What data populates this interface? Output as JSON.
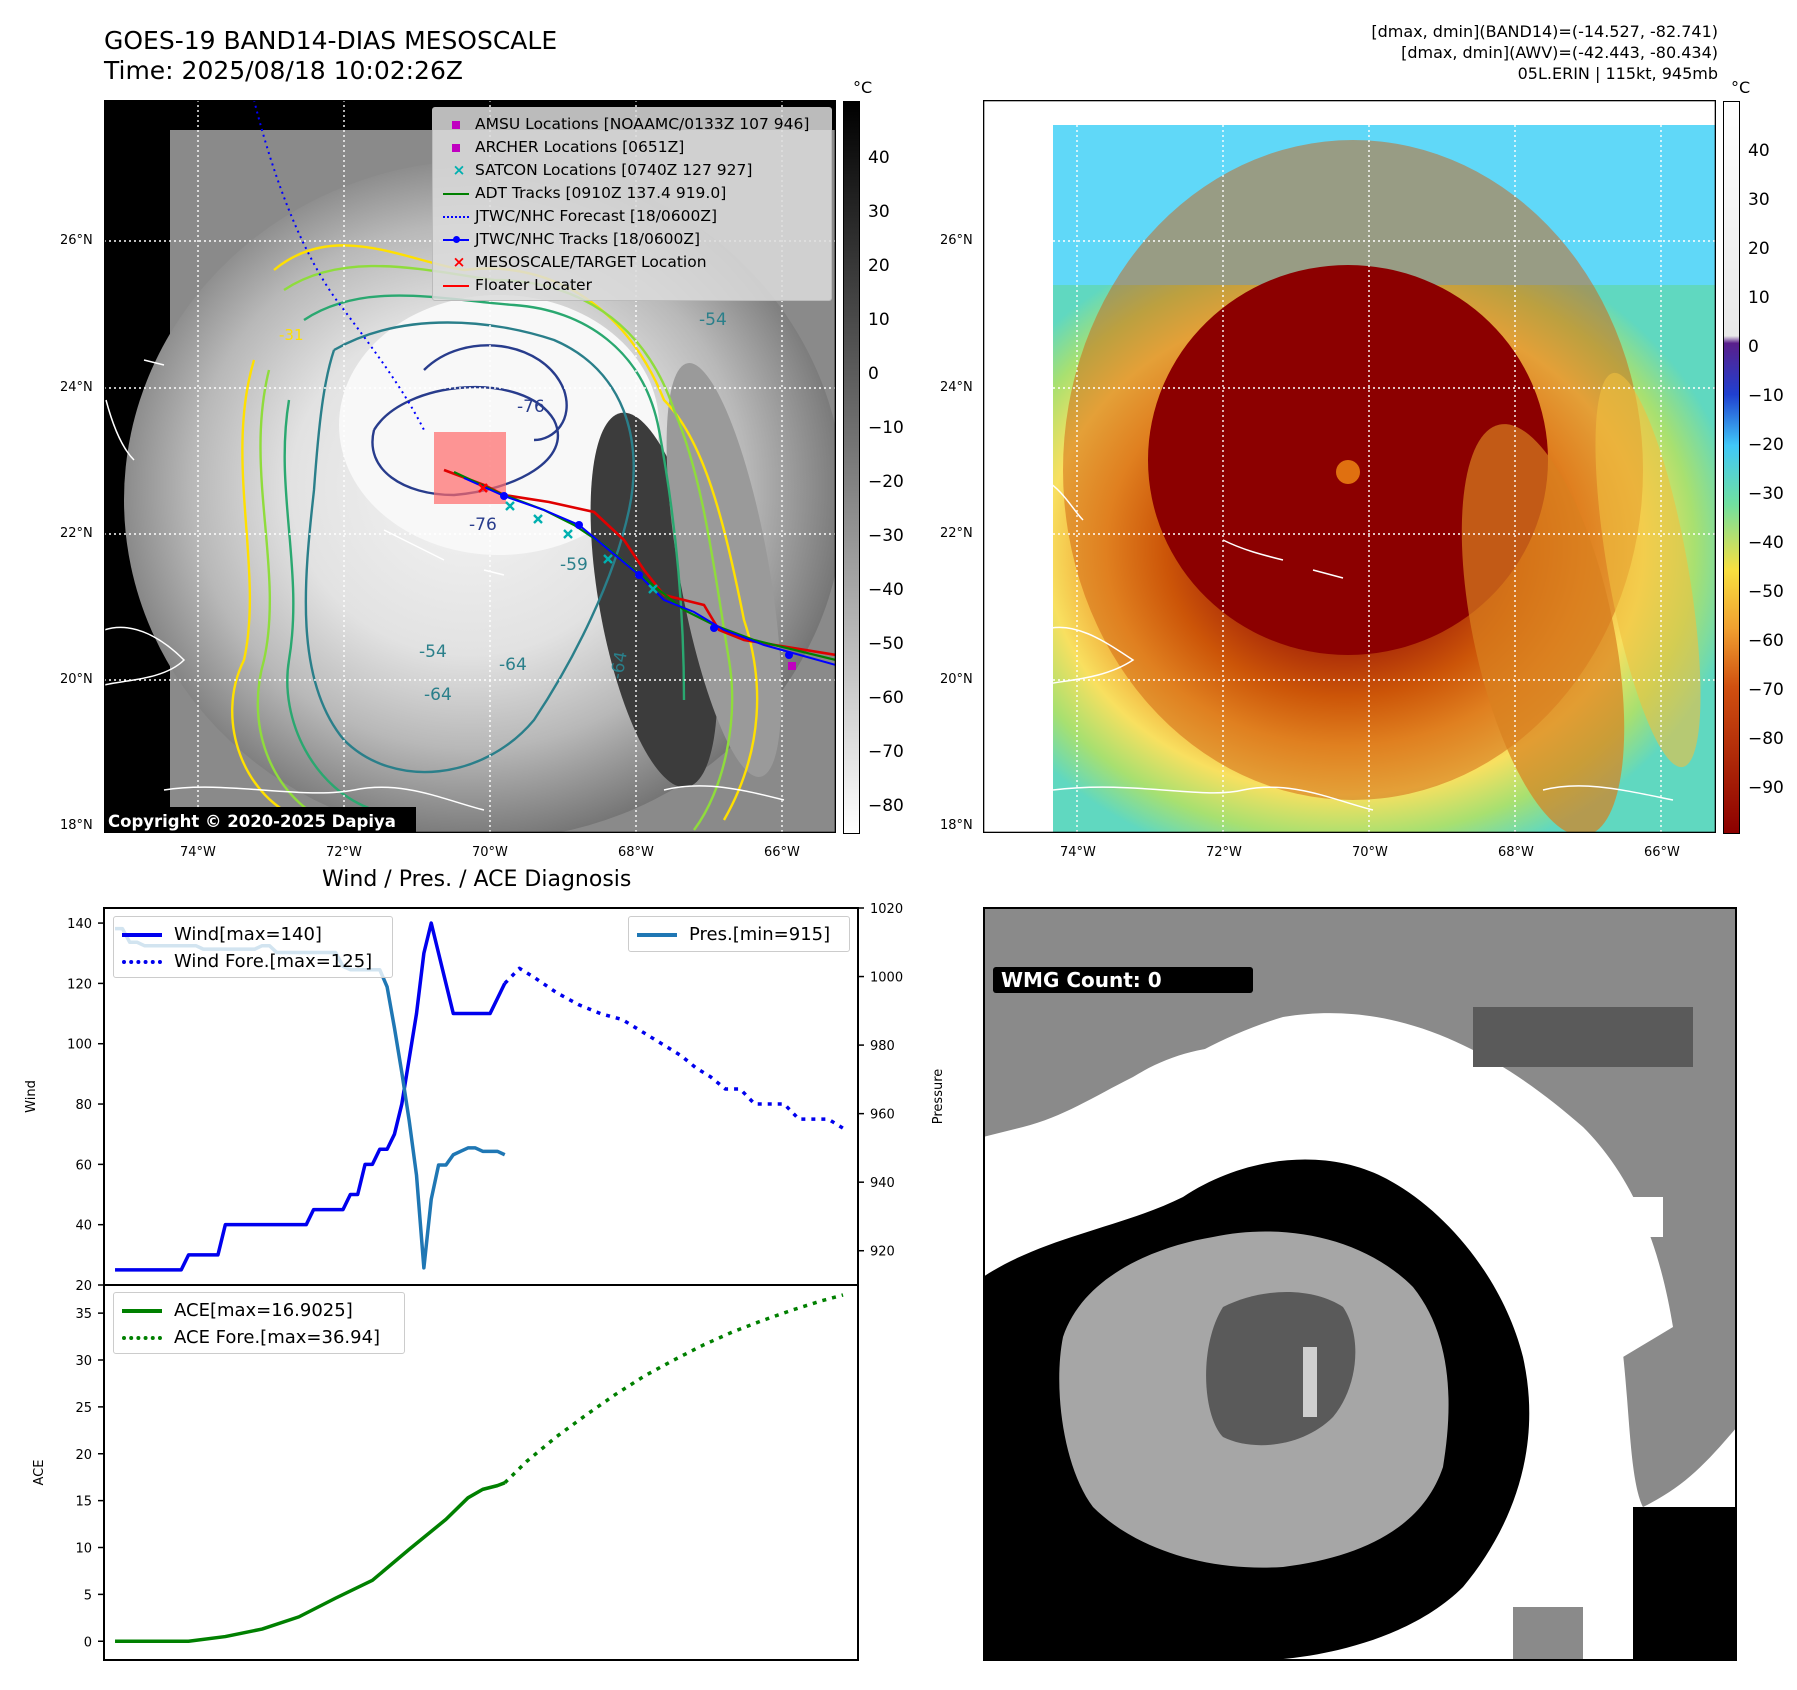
{
  "header": {
    "title_line1": "GOES-19 BAND14-DIAS MESOSCALE",
    "title_line2": "Time: 2025/08/18 10:02:26Z",
    "right_line1": "[dmax, dmin](BAND14)=(-14.527, -82.741)",
    "right_line2": "[dmax, dmin](AWV)=(-42.443, -80.434)",
    "right_line3": "05L.ERIN | 115kt, 945mb"
  },
  "map_axes": {
    "lon_labels": [
      "74°W",
      "72°W",
      "70°W",
      "68°W",
      "66°W"
    ],
    "lat_labels": [
      "26°N",
      "24°N",
      "22°N",
      "20°N",
      "18°N"
    ]
  },
  "colorbar_left": {
    "unit": "°C",
    "ticks": [
      "40",
      "30",
      "20",
      "10",
      "0",
      "−10",
      "−20",
      "−30",
      "−40",
      "−50",
      "−60",
      "−70",
      "−80"
    ]
  },
  "colorbar_right": {
    "unit": "°C",
    "ticks": [
      "40",
      "30",
      "20",
      "10",
      "0",
      "−10",
      "−20",
      "−30",
      "−40",
      "−50",
      "−60",
      "−70",
      "−80",
      "−90"
    ]
  },
  "map_legend": [
    {
      "label": "AMSU Locations [NOAAMC/0133Z 107 946]",
      "marker": "square",
      "color": "#c000c0"
    },
    {
      "label": "ARCHER Locations [0651Z]",
      "marker": "square",
      "color": "#c000c0"
    },
    {
      "label": "SATCON Locations [0740Z 127 927]",
      "marker": "x",
      "color": "#00b0b0"
    },
    {
      "label": "ADT Tracks [0910Z 137.4 919.0]",
      "marker": "line",
      "color": "#008000"
    },
    {
      "label": "JTWC/NHC Forecast [18/0600Z]",
      "marker": "dotted",
      "color": "#0000ff"
    },
    {
      "label": "JTWC/NHC Tracks [18/0600Z]",
      "marker": "line-dot",
      "color": "#0000ff"
    },
    {
      "label": "MESOSCALE/TARGET Location",
      "marker": "x",
      "color": "#ff0000"
    },
    {
      "label": "Floater Locater",
      "marker": "line",
      "color": "#ff0000"
    }
  ],
  "contour_labels": [
    "-76",
    "-76",
    "-64",
    "-64",
    "-54",
    "-64",
    "-59",
    "-54",
    "-31"
  ],
  "copyright": "Copyright © 2020-2025 Dapiya",
  "wmg": {
    "label": "WMG Count: 0"
  },
  "chart_data": [
    {
      "type": "line",
      "title": "Wind / Pres. / ACE Diagnosis",
      "ylabel": "Wind",
      "y2label": "Pressure",
      "ylim": [
        20,
        145
      ],
      "y2lim": [
        910,
        1020
      ],
      "yticks": [
        20,
        40,
        60,
        80,
        100,
        120,
        140
      ],
      "y2ticks": [
        920,
        940,
        960,
        980,
        1000,
        1020
      ],
      "legend_left": [
        "Wind[max=140]",
        "Wind Fore.[max=125]"
      ],
      "legend_right": [
        "Pres.[min=915]"
      ],
      "series": [
        {
          "name": "Wind",
          "style": "solid",
          "color": "#0000ee",
          "axis": "left",
          "x": [
            0,
            1,
            2,
            3,
            4,
            5,
            6,
            7,
            8,
            9,
            10,
            11,
            12,
            13,
            14,
            15,
            16,
            17,
            18,
            19,
            20,
            21,
            22,
            23,
            24,
            25,
            26,
            27,
            28,
            29,
            30,
            31,
            32,
            33,
            34,
            35,
            36,
            37,
            38,
            39,
            40,
            41,
            42,
            43,
            44,
            45,
            46,
            47,
            48,
            49,
            50,
            51,
            52,
            53
          ],
          "values": [
            25,
            25,
            25,
            25,
            25,
            25,
            25,
            25,
            25,
            25,
            30,
            30,
            30,
            30,
            30,
            40,
            40,
            40,
            40,
            40,
            40,
            40,
            40,
            40,
            40,
            40,
            40,
            45,
            45,
            45,
            45,
            45,
            50,
            50,
            60,
            60,
            65,
            65,
            70,
            80,
            95,
            110,
            130,
            140,
            130,
            120,
            110,
            110,
            110,
            110,
            110,
            110,
            115,
            120
          ]
        },
        {
          "name": "Wind Fore.",
          "style": "dotted",
          "color": "#0000ee",
          "axis": "left",
          "x": [
            53,
            55,
            57,
            60,
            63,
            66,
            69,
            71,
            73,
            75,
            77,
            79,
            81,
            83,
            85,
            87,
            89,
            91,
            93,
            95,
            97,
            99
          ],
          "values": [
            120,
            125,
            122,
            117,
            113,
            110,
            108,
            105,
            102,
            99,
            96,
            92,
            89,
            85,
            85,
            80,
            80,
            80,
            75,
            75,
            75,
            72
          ]
        },
        {
          "name": "Pres.",
          "style": "solid",
          "color": "#1f77b4",
          "axis": "right",
          "x": [
            0,
            1,
            2,
            3,
            4,
            5,
            6,
            7,
            8,
            9,
            10,
            11,
            12,
            13,
            14,
            15,
            16,
            17,
            18,
            19,
            20,
            21,
            22,
            23,
            24,
            25,
            26,
            27,
            28,
            29,
            30,
            31,
            32,
            33,
            34,
            35,
            36,
            37,
            38,
            39,
            40,
            41,
            42,
            43,
            44,
            45,
            46,
            47,
            48,
            49,
            50,
            51,
            52,
            53
          ],
          "values": [
            1014,
            1014,
            1010,
            1010,
            1009,
            1009,
            1009,
            1009,
            1009,
            1009,
            1009,
            1009,
            1008,
            1008,
            1008,
            1008,
            1008,
            1008,
            1008,
            1008,
            1009,
            1009,
            1007,
            1007,
            1007,
            1007,
            1007,
            1007,
            1007,
            1007,
            1007,
            1003,
            1002,
            1002,
            1002,
            1002,
            1002,
            997,
            985,
            972,
            958,
            942,
            915,
            935,
            945,
            945,
            948,
            949,
            950,
            950,
            949,
            949,
            949,
            948
          ]
        }
      ]
    },
    {
      "type": "line",
      "ylabel": "ACE",
      "ylim": [
        -2,
        38
      ],
      "yticks": [
        0,
        5,
        10,
        15,
        20,
        25,
        30,
        35
      ],
      "legend": [
        "ACE[max=16.9025]",
        "ACE Fore.[max=36.94]"
      ],
      "series": [
        {
          "name": "ACE",
          "style": "solid",
          "color": "#008000",
          "x": [
            0,
            5,
            10,
            15,
            20,
            25,
            30,
            35,
            40,
            45,
            48,
            50,
            52,
            53
          ],
          "values": [
            0,
            0,
            0,
            0.5,
            1.3,
            2.6,
            4.6,
            6.5,
            9.8,
            13.0,
            15.3,
            16.2,
            16.6,
            16.9
          ]
        },
        {
          "name": "ACE Fore.",
          "style": "dotted",
          "color": "#008000",
          "x": [
            53,
            56,
            60,
            64,
            68,
            72,
            76,
            80,
            84,
            88,
            92,
            96,
            99
          ],
          "values": [
            16.9,
            19.2,
            21.8,
            24.1,
            26.3,
            28.3,
            30.0,
            31.6,
            33.0,
            34.2,
            35.3,
            36.3,
            36.94
          ]
        }
      ]
    }
  ]
}
